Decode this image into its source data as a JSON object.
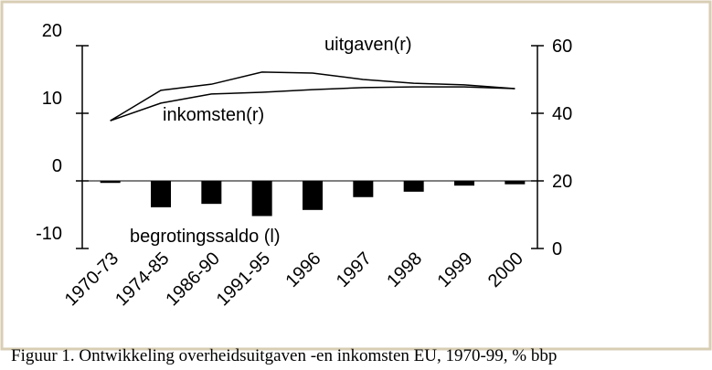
{
  "chart_data": {
    "type": "bar-line",
    "caption": "Figuur 1. Ontwikkeling overheidsuitgaven -en inkomsten EU, 1970-99, % bbp",
    "categories": [
      "1970-73",
      "1974-85",
      "1986-90",
      "1991-95",
      "1996",
      "1997",
      "1998",
      "1999",
      "2000"
    ],
    "series": [
      {
        "name": "begrotingssaldo (l)",
        "type": "bar",
        "color": "#000000",
        "values": [
          -0.3,
          -3.9,
          -3.4,
          -5.2,
          -4.3,
          -2.4,
          -1.6,
          -0.7,
          -0.5
        ]
      },
      {
        "name": "uitgaven(r)",
        "type": "line",
        "axis": "y2",
        "color": "#000000",
        "values": [
          37.8,
          46.8,
          48.6,
          52.2,
          51.9,
          50.0,
          48.9,
          48.4,
          47.3
        ]
      },
      {
        "name": "inkomsten(r)",
        "type": "line",
        "axis": "y2",
        "color": "#000000",
        "values": [
          37.8,
          43.0,
          45.7,
          46.2,
          47.0,
          47.6,
          47.8,
          47.8,
          47.3
        ]
      }
    ],
    "ylim": [
      -10,
      20
    ],
    "yticks": [
      20,
      10,
      0,
      -10
    ],
    "y2lim": [
      0,
      60
    ],
    "y2ticks": [
      60,
      40,
      20,
      0
    ]
  }
}
